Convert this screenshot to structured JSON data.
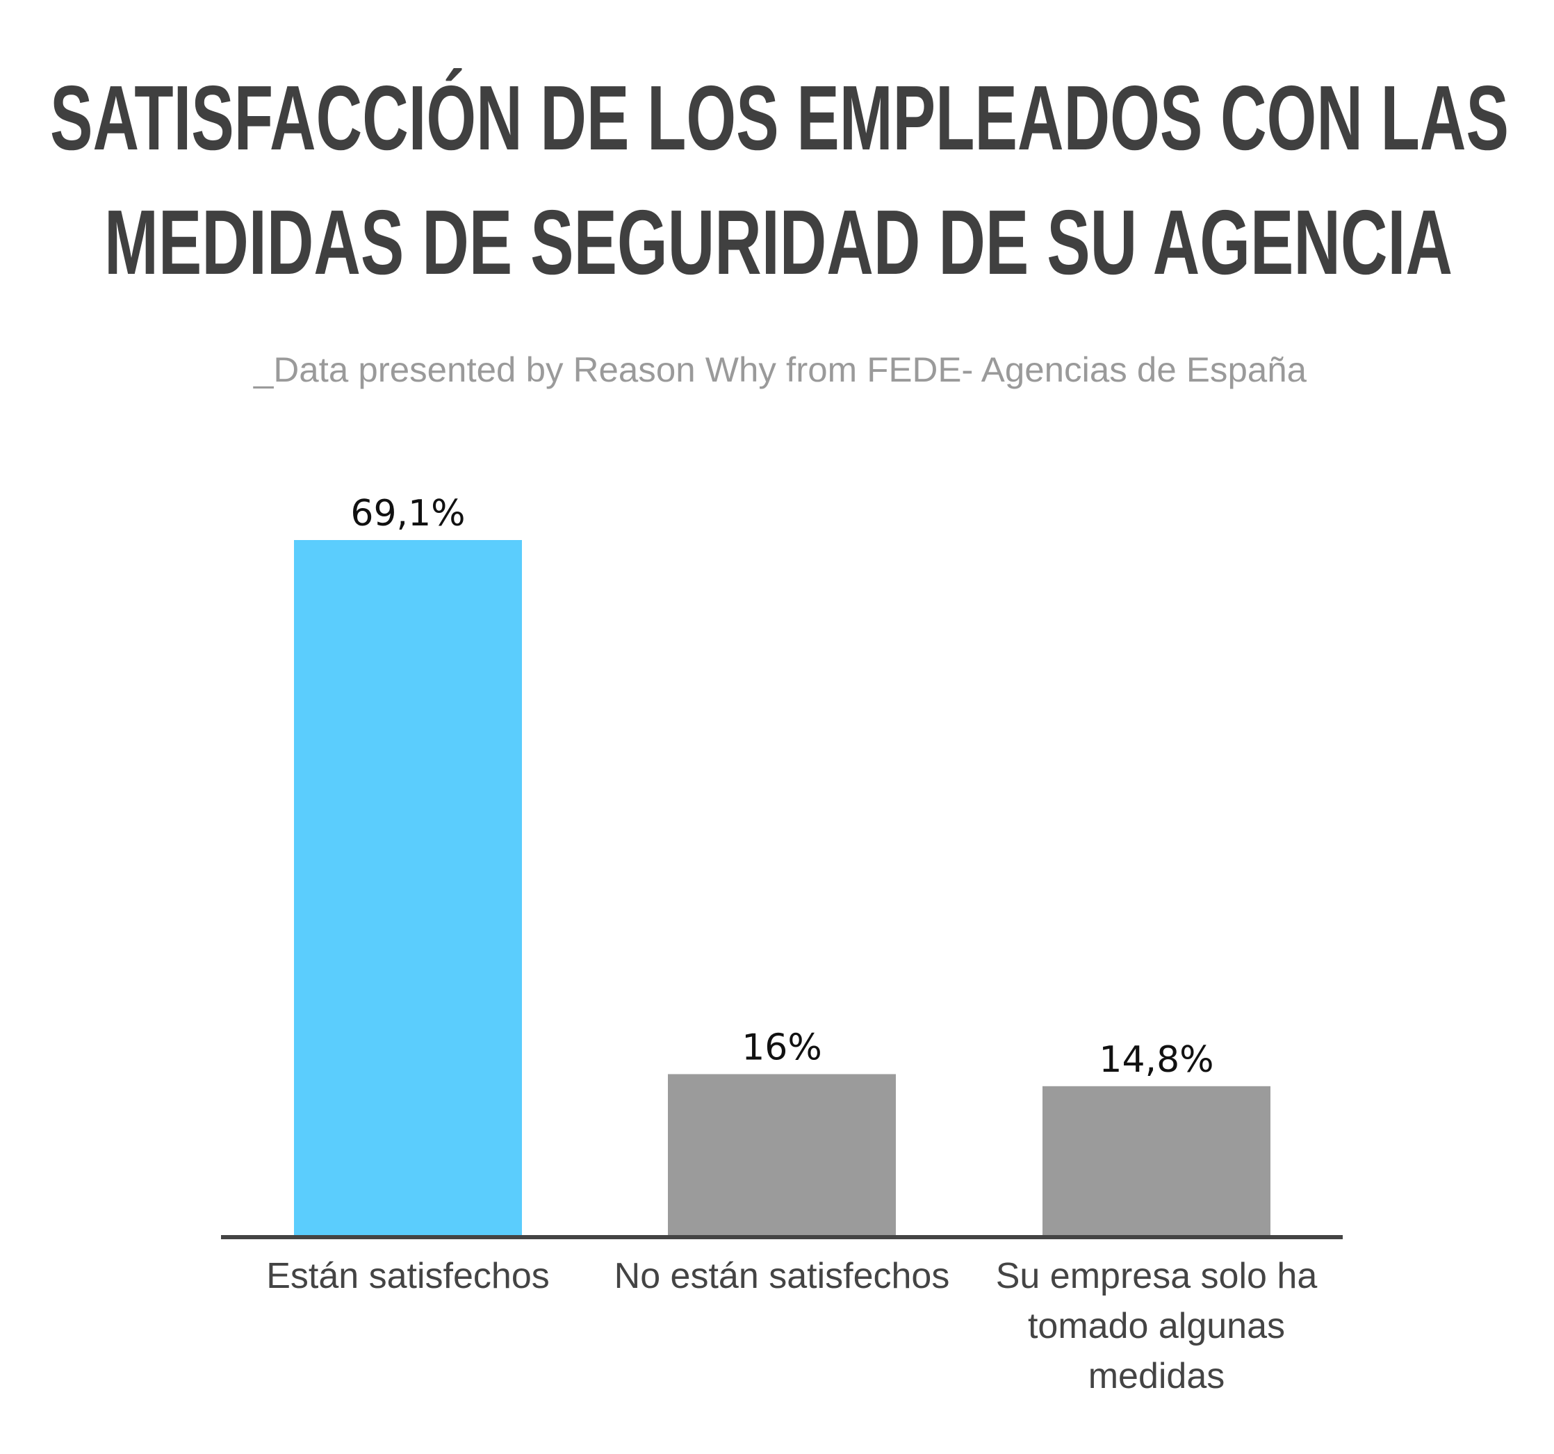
{
  "chart_data": {
    "type": "bar",
    "title": "SATISFACCIÓN DE LOS EMPLEADOS CON LAS MEDIDAS DE SEGURIDAD DE SU AGENCIA",
    "title_lines": [
      "SATISFACCIÓN DE LOS EMPLEADOS CON LAS",
      "MEDIDAS DE SEGURIDAD DE SU AGENCIA"
    ],
    "subtitle": "_Data presented by Reason Why from FEDE- Agencias de España",
    "categories": [
      "Están satisfechos",
      "No están satisfechos",
      "Su empresa solo ha tomado algunas medidas"
    ],
    "category_lines": [
      [
        "Están satisfechos"
      ],
      [
        "No están satisfechos"
      ],
      [
        "Su empresa solo ha",
        "tomado algunas",
        "medidas"
      ]
    ],
    "values": [
      69.1,
      16,
      14.8
    ],
    "data_labels": [
      "69,1%",
      "16%",
      "14,8%"
    ],
    "colors": [
      "#5bcdfd",
      "#9b9b9b",
      "#9b9b9b"
    ],
    "axis_color": "#444444",
    "xlabel": "",
    "ylabel": "",
    "ylim": [
      0,
      69.1
    ],
    "grid": false,
    "y_axis_visible": false
  }
}
